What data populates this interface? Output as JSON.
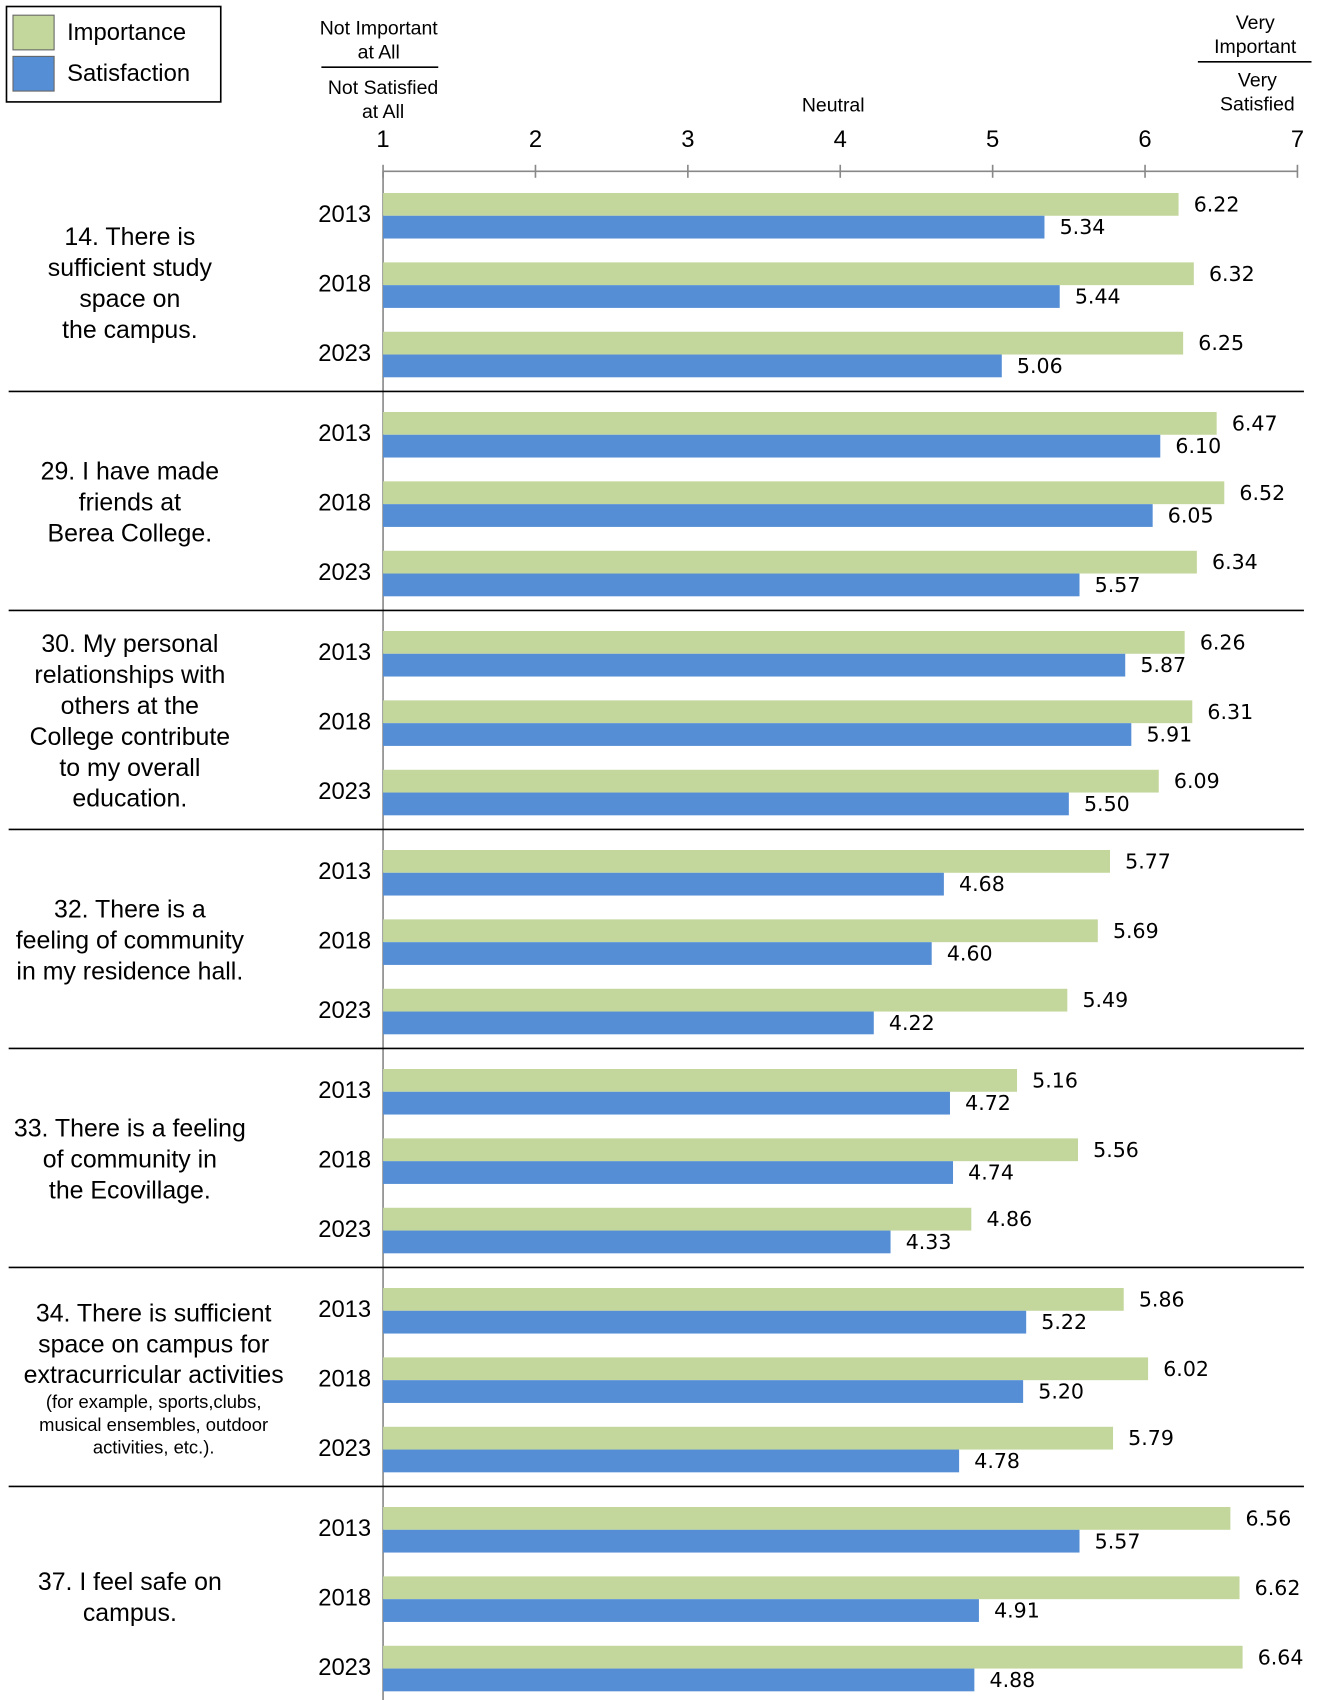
{
  "chart_data": {
    "type": "bar",
    "orientation": "horizontal",
    "xlim": [
      1,
      7
    ],
    "xticks": [
      1,
      2,
      3,
      4,
      5,
      6,
      7
    ],
    "scale_labels": {
      "left_importance": [
        "Not Important",
        "at All"
      ],
      "left_satisfaction": [
        "Not Satisfied",
        "at All"
      ],
      "middle": "Neutral",
      "right_importance": [
        "Very",
        "Important"
      ],
      "right_satisfaction": [
        "Very",
        "Satisfied"
      ]
    },
    "groups": [
      {
        "label": [
          "14. There is",
          "sufficient study",
          "space on",
          "the campus."
        ]
      },
      {
        "label": [
          "29. I have made",
          "friends at",
          "Berea College."
        ]
      },
      {
        "label": [
          "30. My personal",
          "relationships with",
          "others at the",
          "College contribute",
          "to my overall",
          "education."
        ]
      },
      {
        "label": [
          "32. There is a",
          "feeling of community",
          "in my residence hall."
        ]
      },
      {
        "label": [
          "33. There is a feeling",
          "of community in",
          "the Ecovillage."
        ]
      },
      {
        "label": [
          "34. There is sufficient",
          "space on campus for",
          "extracurricular activities"
        ],
        "note": [
          "(for example, sports,clubs,",
          "musical ensembles, outdoor",
          "activities, etc.)."
        ]
      },
      {
        "label": [
          "37. I feel safe on",
          "campus."
        ]
      }
    ],
    "categories": [
      "2013",
      "2018",
      "2023",
      "2013",
      "2018",
      "2023",
      "2013",
      "2018",
      "2023",
      "2013",
      "2018",
      "2023",
      "2013",
      "2018",
      "2023",
      "2013",
      "2018",
      "2023",
      "2013",
      "2018",
      "2023"
    ],
    "series": [
      {
        "name": "Importance",
        "color": "#c3d69b",
        "values": [
          6.22,
          6.32,
          6.25,
          6.47,
          6.52,
          6.34,
          6.26,
          6.31,
          6.09,
          5.77,
          5.69,
          5.49,
          5.16,
          5.56,
          4.86,
          5.86,
          6.02,
          5.79,
          6.56,
          6.62,
          6.64
        ],
        "value_labels": [
          "6.22",
          "6.32",
          "6.25",
          "6.47",
          "6.52",
          "6.34",
          "6.26",
          "6.31",
          "6.09",
          "5.77",
          "5.69",
          "5.49",
          "5.16",
          "5.56",
          "4.86",
          "5.86",
          "6.02",
          "5.79",
          "6.56",
          "6.62",
          "6.64"
        ]
      },
      {
        "name": "Satisfaction",
        "color": "#558ed5",
        "values": [
          5.34,
          5.44,
          5.06,
          6.1,
          6.05,
          5.57,
          5.87,
          5.91,
          5.5,
          4.68,
          4.6,
          4.22,
          4.72,
          4.74,
          4.33,
          5.22,
          5.2,
          4.78,
          5.57,
          4.91,
          4.88
        ],
        "value_labels": [
          "5.34",
          "5.44",
          "5.06",
          "6.10",
          "6.05",
          "5.57",
          "5.87",
          "5.91",
          "5.50",
          "4.68",
          "4.60",
          "4.22",
          "4.72",
          "4.74",
          "4.33",
          "5.22",
          "5.20",
          "4.78",
          "5.57",
          "4.91",
          "4.88"
        ]
      }
    ]
  }
}
